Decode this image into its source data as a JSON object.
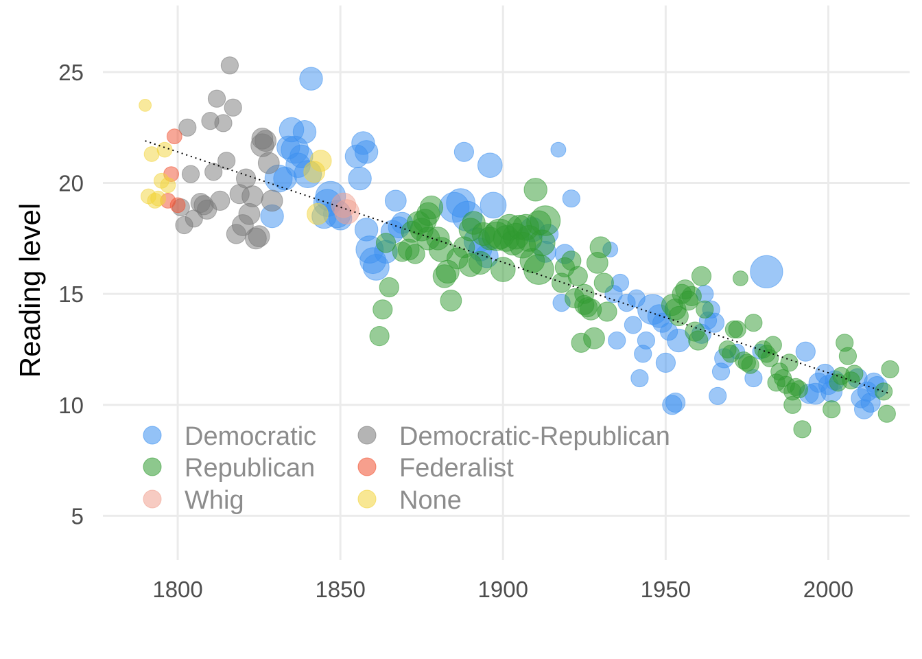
{
  "chart_data": {
    "type": "scatter",
    "title": "",
    "xlabel": "",
    "ylabel": "Reading level",
    "xlim": [
      1777,
      2025
    ],
    "ylim": [
      3.0,
      28.0
    ],
    "x_ticks": [
      1800,
      1850,
      1900,
      1950,
      2000
    ],
    "y_ticks": [
      5,
      10,
      15,
      20,
      25
    ],
    "grid": true,
    "legend_position": "bottom-left",
    "trendline": {
      "style": "dotted",
      "color": "#000000",
      "x": [
        1790,
        2019
      ],
      "y": [
        21.9,
        10.5
      ]
    },
    "size_encoding": "bubble size",
    "series": [
      {
        "name": "Democratic",
        "color": "#3b8ff0",
        "points": [
          [
            1829,
            18.5,
            7
          ],
          [
            1831,
            20.2,
            10
          ],
          [
            1833,
            20.2,
            7
          ],
          [
            1834,
            21.6,
            7
          ],
          [
            1835,
            22.4,
            8
          ],
          [
            1836,
            21.5,
            10
          ],
          [
            1837,
            20.8,
            8
          ],
          [
            1838,
            21.2,
            7
          ],
          [
            1839,
            22.3,
            7
          ],
          [
            1840,
            20.4,
            10
          ],
          [
            1841,
            24.7,
            7
          ],
          [
            1845,
            18.5,
            8
          ],
          [
            1846,
            19.1,
            10
          ],
          [
            1847,
            19.4,
            12
          ],
          [
            1849,
            18.6,
            10
          ],
          [
            1850,
            18.4,
            7
          ],
          [
            1855,
            21.2,
            7
          ],
          [
            1856,
            20.2,
            7
          ],
          [
            1857,
            21.8,
            7
          ],
          [
            1858,
            21.4,
            7
          ],
          [
            1858,
            17.9,
            7
          ],
          [
            1859,
            17.0,
            10
          ],
          [
            1860,
            16.5,
            9
          ],
          [
            1861,
            16.2,
            9
          ],
          [
            1864,
            16.9,
            7
          ],
          [
            1866,
            17.8,
            7
          ],
          [
            1867,
            19.2,
            6
          ],
          [
            1868,
            18.0,
            6
          ],
          [
            1869,
            18.2,
            6
          ],
          [
            1885,
            18.9,
            12
          ],
          [
            1887,
            19.1,
            11
          ],
          [
            1888,
            21.4,
            5
          ],
          [
            1889,
            18.5,
            12
          ],
          [
            1892,
            17.4,
            9
          ],
          [
            1893,
            17.0,
            7
          ],
          [
            1895,
            16.7,
            7
          ],
          [
            1896,
            20.8,
            8
          ],
          [
            1897,
            19.0,
            9
          ],
          [
            1909,
            17.9,
            8
          ],
          [
            1913,
            16.9,
            6
          ],
          [
            1914,
            17.7,
            5
          ],
          [
            1917,
            21.5,
            3
          ],
          [
            1918,
            14.6,
            4
          ],
          [
            1919,
            16.8,
            5
          ],
          [
            1921,
            19.3,
            4
          ],
          [
            1933,
            17.0,
            3
          ],
          [
            1934,
            15.0,
            4
          ],
          [
            1935,
            12.9,
            4
          ],
          [
            1936,
            15.5,
            4
          ],
          [
            1938,
            14.6,
            4
          ],
          [
            1940,
            13.6,
            4
          ],
          [
            1941,
            14.8,
            4
          ],
          [
            1942,
            11.2,
            4
          ],
          [
            1943,
            12.3,
            4
          ],
          [
            1944,
            12.9,
            4
          ],
          [
            1946,
            14.3,
            12
          ],
          [
            1948,
            14.0,
            7
          ],
          [
            1949,
            13.7,
            5
          ],
          [
            1950,
            11.9,
            5
          ],
          [
            1951,
            13.3,
            4
          ],
          [
            1952,
            10.0,
            5
          ],
          [
            1953,
            10.1,
            5
          ],
          [
            1954,
            12.9,
            7
          ],
          [
            1961,
            13.2,
            5
          ],
          [
            1962,
            15.0,
            4
          ],
          [
            1963,
            13.8,
            4
          ],
          [
            1964,
            14.3,
            4
          ],
          [
            1965,
            13.7,
            5
          ],
          [
            1966,
            10.4,
            4
          ],
          [
            1967,
            11.5,
            4
          ],
          [
            1968,
            12.1,
            5
          ],
          [
            1972,
            12.4,
            3
          ],
          [
            1977,
            11.2,
            4
          ],
          [
            1979,
            12.4,
            3
          ],
          [
            1981,
            16.0,
            14
          ],
          [
            1993,
            12.4,
            5
          ],
          [
            1994,
            10.5,
            5
          ],
          [
            1996,
            10.5,
            6
          ],
          [
            1997,
            11.0,
            5
          ],
          [
            1999,
            11.4,
            5
          ],
          [
            2000,
            10.9,
            5
          ],
          [
            2001,
            10.6,
            6
          ],
          [
            2002,
            11.1,
            5
          ],
          [
            2009,
            11.2,
            5
          ],
          [
            2010,
            10.3,
            5
          ],
          [
            2011,
            9.8,
            5
          ],
          [
            2012,
            10.6,
            5
          ],
          [
            2013,
            10.1,
            5
          ],
          [
            2014,
            11.0,
            5
          ],
          [
            2015,
            10.8,
            6
          ]
        ]
      },
      {
        "name": "Republican",
        "color": "#2f9a2f",
        "points": [
          [
            1862,
            13.1,
            5
          ],
          [
            1863,
            14.3,
            5
          ],
          [
            1864,
            17.3,
            5
          ],
          [
            1865,
            15.3,
            5
          ],
          [
            1869,
            16.9,
            5
          ],
          [
            1871,
            17.0,
            6
          ],
          [
            1872,
            17.8,
            6
          ],
          [
            1873,
            16.8,
            5
          ],
          [
            1874,
            18.2,
            7
          ],
          [
            1875,
            17.9,
            7
          ],
          [
            1876,
            18.3,
            7
          ],
          [
            1877,
            18.6,
            7
          ],
          [
            1877,
            17.5,
            7
          ],
          [
            1878,
            18.9,
            7
          ],
          [
            1880,
            17.5,
            7
          ],
          [
            1881,
            17.0,
            8
          ],
          [
            1882,
            15.8,
            7
          ],
          [
            1883,
            16.0,
            7
          ],
          [
            1884,
            14.7,
            6
          ],
          [
            1886,
            16.6,
            6
          ],
          [
            1888,
            17.1,
            6
          ],
          [
            1890,
            16.3,
            7
          ],
          [
            1890,
            17.9,
            7
          ],
          [
            1891,
            18.2,
            7
          ],
          [
            1893,
            16.4,
            7
          ],
          [
            1894,
            17.7,
            7
          ],
          [
            1896,
            17.5,
            7
          ],
          [
            1898,
            17.6,
            11
          ],
          [
            1899,
            17.7,
            12
          ],
          [
            1900,
            16.1,
            8
          ],
          [
            1901,
            17.5,
            9
          ],
          [
            1902,
            18.0,
            9
          ],
          [
            1903,
            17.3,
            8
          ],
          [
            1904,
            17.6,
            9
          ],
          [
            1905,
            18.0,
            8
          ],
          [
            1906,
            17.2,
            9
          ],
          [
            1907,
            18.0,
            9
          ],
          [
            1908,
            17.5,
            9
          ],
          [
            1909,
            16.5,
            8
          ],
          [
            1910,
            19.7,
            7
          ],
          [
            1911,
            18.2,
            8
          ],
          [
            1911,
            16.1,
            12
          ],
          [
            1912,
            17.3,
            9
          ],
          [
            1913,
            18.3,
            12
          ],
          [
            1918,
            15.5,
            5
          ],
          [
            1919,
            16.2,
            5
          ],
          [
            1921,
            16.5,
            5
          ],
          [
            1922,
            14.8,
            5
          ],
          [
            1923,
            15.8,
            5
          ],
          [
            1924,
            12.8,
            5
          ],
          [
            1925,
            15.0,
            5
          ],
          [
            1925,
            14.5,
            5
          ],
          [
            1926,
            14.4,
            5
          ],
          [
            1927,
            14.3,
            6
          ],
          [
            1928,
            13.0,
            6
          ],
          [
            1929,
            16.4,
            6
          ],
          [
            1930,
            17.1,
            6
          ],
          [
            1931,
            15.5,
            5
          ],
          [
            1932,
            14.2,
            5
          ],
          [
            1952,
            14.5,
            6
          ],
          [
            1953,
            14.3,
            6
          ],
          [
            1954,
            14.0,
            5
          ],
          [
            1955,
            15.0,
            5
          ],
          [
            1956,
            15.2,
            5
          ],
          [
            1957,
            14.7,
            5
          ],
          [
            1958,
            14.9,
            5
          ],
          [
            1959,
            13.3,
            5
          ],
          [
            1960,
            12.9,
            5
          ],
          [
            1961,
            15.8,
            5
          ],
          [
            1962,
            14.3,
            4
          ],
          [
            1969,
            12.5,
            4
          ],
          [
            1970,
            12.3,
            4
          ],
          [
            1971,
            13.4,
            4
          ],
          [
            1972,
            13.4,
            4
          ],
          [
            1973,
            15.7,
            3
          ],
          [
            1974,
            12.0,
            4
          ],
          [
            1975,
            11.9,
            4
          ],
          [
            1976,
            11.8,
            4
          ],
          [
            1977,
            13.7,
            4
          ],
          [
            1980,
            12.5,
            4
          ],
          [
            1981,
            12.3,
            4
          ],
          [
            1982,
            12.1,
            4
          ],
          [
            1983,
            12.7,
            4
          ],
          [
            1984,
            11.0,
            4
          ],
          [
            1985,
            11.5,
            4
          ],
          [
            1986,
            11.2,
            4
          ],
          [
            1987,
            10.9,
            4
          ],
          [
            1988,
            11.9,
            4
          ],
          [
            1989,
            10.0,
            4
          ],
          [
            1989,
            10.6,
            4
          ],
          [
            1990,
            10.8,
            4
          ],
          [
            1991,
            10.7,
            4
          ],
          [
            1992,
            8.9,
            4
          ],
          [
            2001,
            9.8,
            4
          ],
          [
            2003,
            11.0,
            4
          ],
          [
            2004,
            11.3,
            4
          ],
          [
            2005,
            12.8,
            4
          ],
          [
            2006,
            12.2,
            4
          ],
          [
            2007,
            11.1,
            4
          ],
          [
            2008,
            11.4,
            4
          ],
          [
            2017,
            10.6,
            4
          ],
          [
            2018,
            9.6,
            4
          ],
          [
            2019,
            11.6,
            4
          ]
        ]
      },
      {
        "name": "Whig",
        "color": "#f0a090",
        "points": [
          [
            1851,
            19.0,
            8
          ],
          [
            1852,
            18.7,
            8
          ]
        ]
      },
      {
        "name": "Democratic-Republican",
        "color": "#777777",
        "points": [
          [
            1801,
            18.9,
            4
          ],
          [
            1802,
            18.1,
            4
          ],
          [
            1803,
            22.5,
            4
          ],
          [
            1804,
            20.4,
            4
          ],
          [
            1805,
            18.4,
            4
          ],
          [
            1807,
            19.1,
            5
          ],
          [
            1808,
            19.0,
            5
          ],
          [
            1809,
            18.8,
            5
          ],
          [
            1810,
            22.8,
            4
          ],
          [
            1811,
            20.5,
            4
          ],
          [
            1812,
            23.8,
            4
          ],
          [
            1813,
            19.2,
            5
          ],
          [
            1814,
            22.7,
            4
          ],
          [
            1815,
            21.0,
            4
          ],
          [
            1816,
            25.3,
            4
          ],
          [
            1817,
            23.4,
            4
          ],
          [
            1818,
            17.7,
            5
          ],
          [
            1819,
            19.5,
            5
          ],
          [
            1820,
            18.1,
            6
          ],
          [
            1821,
            20.2,
            5
          ],
          [
            1822,
            18.6,
            6
          ],
          [
            1823,
            19.4,
            6
          ],
          [
            1824,
            17.5,
            6
          ],
          [
            1825,
            17.6,
            6
          ],
          [
            1826,
            21.7,
            7
          ],
          [
            1826,
            22.0,
            6
          ],
          [
            1827,
            21.9,
            6
          ],
          [
            1828,
            20.9,
            6
          ],
          [
            1829,
            19.2,
            6
          ]
        ]
      },
      {
        "name": "Federalist",
        "color": "#f05030",
        "points": [
          [
            1797,
            19.2,
            3
          ],
          [
            1798,
            20.4,
            3
          ],
          [
            1799,
            22.1,
            3
          ],
          [
            1800,
            19.0,
            3
          ]
        ]
      },
      {
        "name": "None",
        "color": "#f2d33a",
        "points": [
          [
            1790,
            23.5,
            2
          ],
          [
            1791,
            19.4,
            3
          ],
          [
            1792,
            21.3,
            3
          ],
          [
            1793,
            19.2,
            3
          ],
          [
            1794,
            19.3,
            3
          ],
          [
            1795,
            20.1,
            3
          ],
          [
            1796,
            21.5,
            3
          ],
          [
            1797,
            19.9,
            3
          ],
          [
            1842,
            20.5,
            6
          ],
          [
            1843,
            18.6,
            6
          ],
          [
            1844,
            21.0,
            6
          ]
        ]
      }
    ]
  }
}
